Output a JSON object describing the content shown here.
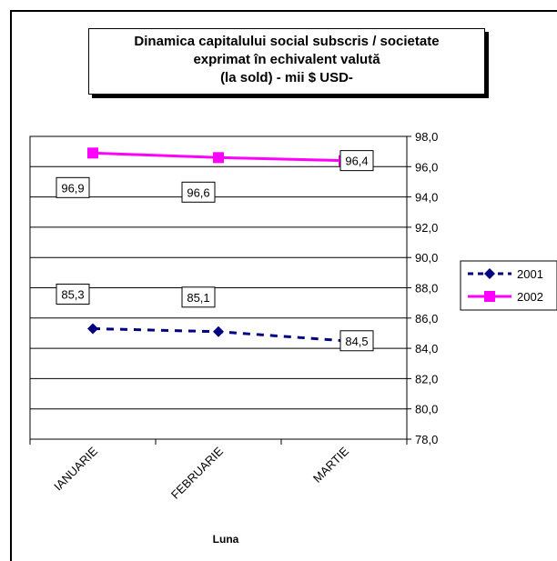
{
  "chart_data": {
    "type": "line",
    "title_lines": [
      "Dinamica capitalului social subscris / societate",
      "exprimat în echivalent valută",
      "(la sold) - mii $ USD-"
    ],
    "xlabel": "Luna",
    "ylabel": "",
    "categories": [
      "IANUARIE",
      "FEBRUARIE",
      "MARTIE"
    ],
    "ylim": [
      78.0,
      98.0
    ],
    "ytick_step": 2.0,
    "y_tick_labels": [
      "78,0",
      "80,0",
      "82,0",
      "84,0",
      "86,0",
      "88,0",
      "90,0",
      "92,0",
      "94,0",
      "96,0",
      "98,0"
    ],
    "grid": true,
    "legend_position": "right",
    "series": [
      {
        "name": "2001",
        "values": [
          85.3,
          85.1,
          84.5
        ],
        "labels": [
          "85,3",
          "85,1",
          "84,5"
        ],
        "color": "#000080",
        "line_style": "dashed",
        "marker": "diamond"
      },
      {
        "name": "2002",
        "values": [
          96.9,
          96.6,
          96.4
        ],
        "labels": [
          "96,9",
          "96,6",
          "96,4"
        ],
        "color": "#FF00FF",
        "line_style": "solid",
        "marker": "square"
      }
    ]
  }
}
